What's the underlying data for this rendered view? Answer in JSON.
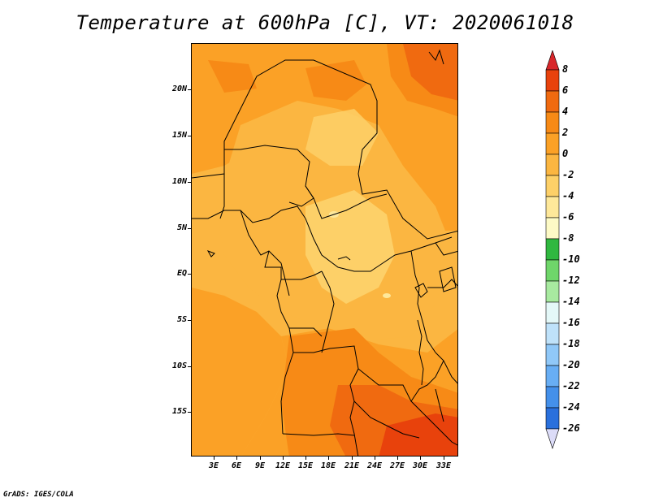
{
  "title": "Temperature at 600hPa [C], VT: 2020061018",
  "credit": "GrADS: IGES/COLA",
  "map": {
    "lat_labels": [
      "20N",
      "15N",
      "10N",
      "5N",
      "EQ",
      "5S",
      "10S",
      "15S"
    ],
    "lon_labels": [
      "3E",
      "6E",
      "9E",
      "12E",
      "15E",
      "18E",
      "21E",
      "24E",
      "27E",
      "30E",
      "33E"
    ],
    "colors": {
      "base": "#fbb641",
      "light": "#fdd068",
      "lighter": "#fee89a",
      "mid": "#fba126",
      "warm": "#f78a16",
      "hot": "#f06a10",
      "hotter": "#e8420c"
    }
  },
  "colorbar": {
    "labels": [
      "8",
      "6",
      "4",
      "2",
      "0",
      "-2",
      "-4",
      "-6",
      "-8",
      "-10",
      "-12",
      "-14",
      "-16",
      "-18",
      "-20",
      "-22",
      "-24",
      "-26"
    ],
    "colors": [
      "#e8420c",
      "#f06a10",
      "#f78a16",
      "#fba126",
      "#fbb641",
      "#fdd068",
      "#fee89a",
      "#fdfac6",
      "#30b840",
      "#6fd66a",
      "#a8eaa0",
      "#e4f8f8",
      "#bfe2fa",
      "#90c8f8",
      "#68aef4",
      "#4490ea",
      "#2a70dc",
      "#1a4fc4",
      "#0e2f9e",
      "#0a1a6e"
    ],
    "top_color": "#d8262a",
    "bottom_color": "#dcdcf8"
  }
}
